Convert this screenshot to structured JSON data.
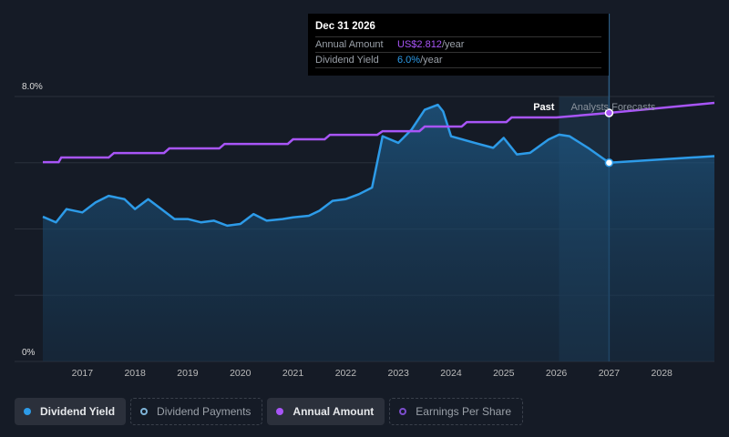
{
  "tooltip": {
    "date": "Dec 31 2026",
    "rows": [
      {
        "label": "Annual Amount",
        "value": "US$2.812",
        "unit": "/year",
        "color": "#a855f7"
      },
      {
        "label": "Dividend Yield",
        "value": "6.0%",
        "unit": "/year",
        "color": "#2d9be8"
      }
    ]
  },
  "legend": [
    {
      "label": "Dividend Yield",
      "active": true,
      "color": "#2d9be8"
    },
    {
      "label": "Dividend Payments",
      "active": false,
      "color": "#7fb4d8"
    },
    {
      "label": "Annual Amount",
      "active": true,
      "color": "#a855f7"
    },
    {
      "label": "Earnings Per Share",
      "active": false,
      "color": "#7c4dcc"
    }
  ],
  "chart_data": {
    "type": "line",
    "y_tick_labels": [
      "8.0%",
      "0%"
    ],
    "ylim_percent": [
      0,
      8
    ],
    "xlim": [
      2016.25,
      2029
    ],
    "x_tick_labels": [
      "2017",
      "2018",
      "2019",
      "2020",
      "2021",
      "2022",
      "2023",
      "2024",
      "2025",
      "2026",
      "2027",
      "2028"
    ],
    "region_labels": {
      "past": "Past",
      "forecast": "Analysts Forecasts"
    },
    "forecast_start": 2026.05,
    "highlight_x": 2027,
    "grid": true,
    "series": [
      {
        "name": "Dividend Yield",
        "unit": "%",
        "color": "#2d9be8",
        "points": [
          [
            2016.25,
            4.37
          ],
          [
            2016.5,
            4.2
          ],
          [
            2016.7,
            4.6
          ],
          [
            2017,
            4.5
          ],
          [
            2017.25,
            4.8
          ],
          [
            2017.5,
            5.0
          ],
          [
            2017.8,
            4.9
          ],
          [
            2018,
            4.6
          ],
          [
            2018.25,
            4.9
          ],
          [
            2018.5,
            4.6
          ],
          [
            2018.75,
            4.3
          ],
          [
            2019,
            4.3
          ],
          [
            2019.25,
            4.2
          ],
          [
            2019.5,
            4.25
          ],
          [
            2019.75,
            4.1
          ],
          [
            2020,
            4.15
          ],
          [
            2020.25,
            4.45
          ],
          [
            2020.5,
            4.25
          ],
          [
            2020.8,
            4.3
          ],
          [
            2021,
            4.35
          ],
          [
            2021.3,
            4.4
          ],
          [
            2021.5,
            4.55
          ],
          [
            2021.75,
            4.85
          ],
          [
            2022,
            4.9
          ],
          [
            2022.25,
            5.05
          ],
          [
            2022.5,
            5.25
          ],
          [
            2022.7,
            6.8
          ],
          [
            2023,
            6.6
          ],
          [
            2023.25,
            7.0
          ],
          [
            2023.5,
            7.6
          ],
          [
            2023.75,
            7.75
          ],
          [
            2023.85,
            7.55
          ],
          [
            2024,
            6.8
          ],
          [
            2024.45,
            6.6
          ],
          [
            2024.8,
            6.45
          ],
          [
            2025,
            6.75
          ],
          [
            2025.25,
            6.25
          ],
          [
            2025.5,
            6.3
          ],
          [
            2025.85,
            6.7
          ],
          [
            2026.05,
            6.85
          ],
          [
            2026.25,
            6.8
          ],
          [
            2026.6,
            6.45
          ],
          [
            2027,
            6.0
          ],
          [
            2029,
            6.2
          ]
        ]
      },
      {
        "name": "Annual Amount",
        "unit": "USD",
        "color": "#a855f7",
        "points": [
          [
            2016.25,
            2.255
          ],
          [
            2016.55,
            2.255
          ],
          [
            2016.6,
            2.307
          ],
          [
            2017.5,
            2.307
          ],
          [
            2017.6,
            2.358
          ],
          [
            2018.55,
            2.358
          ],
          [
            2018.65,
            2.41
          ],
          [
            2019.6,
            2.41
          ],
          [
            2019.7,
            2.461
          ],
          [
            2020.9,
            2.461
          ],
          [
            2021,
            2.513
          ],
          [
            2021.6,
            2.513
          ],
          [
            2021.7,
            2.564
          ],
          [
            2022.6,
            2.564
          ],
          [
            2022.7,
            2.605
          ],
          [
            2023.4,
            2.605
          ],
          [
            2023.5,
            2.657
          ],
          [
            2024.2,
            2.657
          ],
          [
            2024.3,
            2.708
          ],
          [
            2025.05,
            2.708
          ],
          [
            2025.15,
            2.76
          ],
          [
            2026.0,
            2.76
          ],
          [
            2027,
            2.812
          ],
          [
            2029,
            2.925
          ]
        ]
      }
    ]
  }
}
